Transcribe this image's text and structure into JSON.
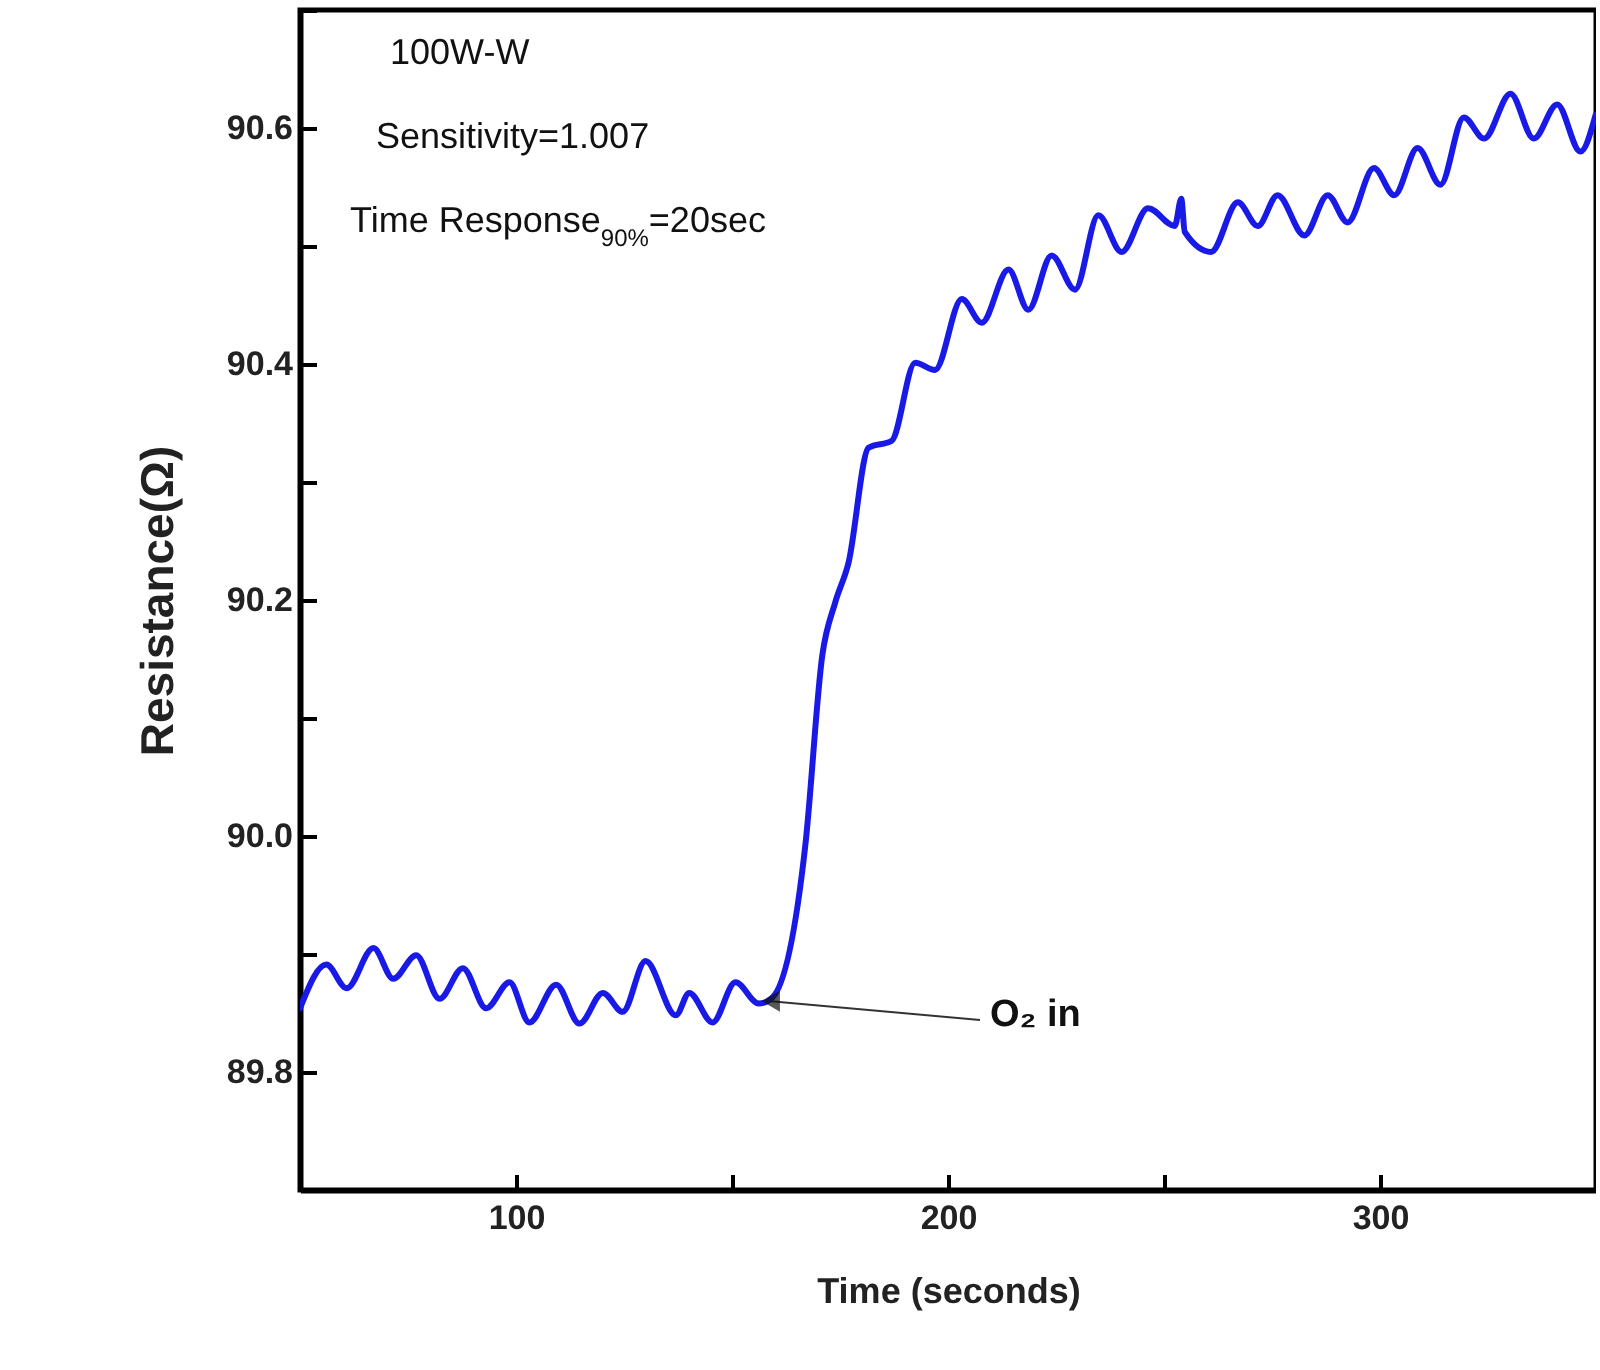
{
  "chart_data": {
    "type": "line",
    "xlabel": "Time (seconds)",
    "ylabel": "Resistance(Ω)",
    "xlim": [
      50,
      350
    ],
    "xticks": [
      {
        "value": 50,
        "label": null
      },
      {
        "value": 100,
        "label": "100"
      },
      {
        "value": 150,
        "label": null
      },
      {
        "value": 200,
        "label": "200"
      },
      {
        "value": 250,
        "label": null
      },
      {
        "value": 300,
        "label": "300"
      },
      {
        "value": 350,
        "label": null
      }
    ],
    "ylim": [
      89.7,
      90.7
    ],
    "yticks": [
      {
        "value": 89.7,
        "label": null
      },
      {
        "value": 89.8,
        "label": "89.8"
      },
      {
        "value": 89.9,
        "label": null
      },
      {
        "value": 90.0,
        "label": "90.0"
      },
      {
        "value": 90.1,
        "label": null
      },
      {
        "value": 90.2,
        "label": "90.2"
      },
      {
        "value": 90.3,
        "label": null
      },
      {
        "value": 90.4,
        "label": "90.4"
      },
      {
        "value": 90.5,
        "label": null
      },
      {
        "value": 90.6,
        "label": "90.6"
      },
      {
        "value": 90.7,
        "label": null
      }
    ],
    "grid": false,
    "marker": "none",
    "line_style": "solid",
    "annotations": [
      "100W-W",
      "Sensitivity=1.007",
      "Time Response$_{90%}$=20sec",
      {
        "text": "O₂ in",
        "x": 159,
        "y": 89.86
      }
    ],
    "series": [
      {
        "color": "#1a1ae6",
        "x": [
          50,
          56.1,
          60.8,
          67.0,
          71.6,
          76.9,
          82.3,
          87.7,
          93.1,
          98.5,
          103.1,
          109.3,
          114.7,
          120.1,
          124.7,
          130.0,
          137.0,
          140.1,
          145.5,
          150.8,
          156.2,
          159.3,
          167.0,
          170.9,
          173.9,
          177.0,
          181.6,
          187.0,
          192.4,
          197.0,
          203.2,
          207.8,
          214.0,
          218.6,
          224.0,
          229.4,
          234.8,
          240.2,
          246.3,
          252.5,
          254.0,
          254.8,
          260.9,
          267.1,
          271.7,
          276.3,
          282.5,
          287.9,
          292.5,
          298.6,
          303.3,
          308.7,
          314.0,
          319.4,
          324.1,
          330.2,
          335.6,
          341.0,
          346.4,
          349.9
        ],
        "values": [
          89.854,
          89.891,
          89.871,
          89.905,
          89.879,
          89.899,
          89.862,
          89.888,
          89.854,
          89.876,
          89.842,
          89.874,
          89.841,
          89.867,
          89.851,
          89.894,
          89.848,
          89.867,
          89.842,
          89.876,
          89.858,
          89.863,
          89.993,
          90.153,
          90.198,
          90.232,
          90.329,
          90.335,
          90.401,
          90.395,
          90.455,
          90.435,
          90.48,
          90.446,
          90.492,
          90.463,
          90.526,
          90.495,
          90.532,
          90.517,
          90.54,
          90.512,
          90.495,
          90.537,
          90.517,
          90.543,
          90.509,
          90.543,
          90.52,
          90.566,
          90.543,
          90.583,
          90.552,
          90.609,
          90.591,
          90.629,
          90.591,
          90.62,
          90.58,
          90.611
        ]
      }
    ]
  }
}
